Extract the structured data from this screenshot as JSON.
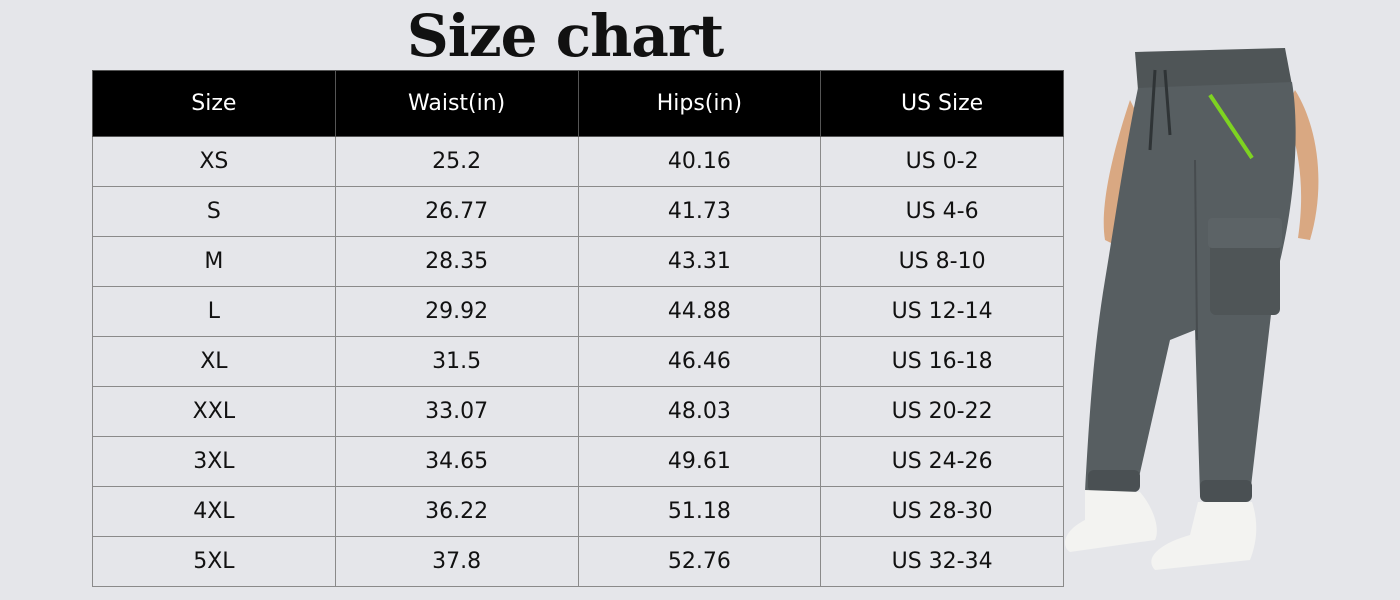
{
  "header": {
    "title": "Size chart"
  },
  "table": {
    "columns": [
      "Size",
      "Waist(in)",
      "Hips(in)",
      "US Size"
    ],
    "rows": [
      [
        "XS",
        25.2,
        40.16,
        "US 0-2"
      ],
      [
        "S",
        26.77,
        41.73,
        "US 4-6"
      ],
      [
        "M",
        28.35,
        43.31,
        "US 8-10"
      ],
      [
        "L",
        29.92,
        44.88,
        "US 12-14"
      ],
      [
        "XL",
        31.5,
        46.46,
        "US 16-18"
      ],
      [
        "XXL",
        33.07,
        48.03,
        "US 20-22"
      ],
      [
        "3XL",
        34.65,
        49.61,
        "US 24-26"
      ],
      [
        "4XL",
        36.22,
        51.18,
        "US 28-30"
      ],
      [
        "5XL",
        37.8,
        52.76,
        "US 32-34"
      ]
    ]
  }
}
